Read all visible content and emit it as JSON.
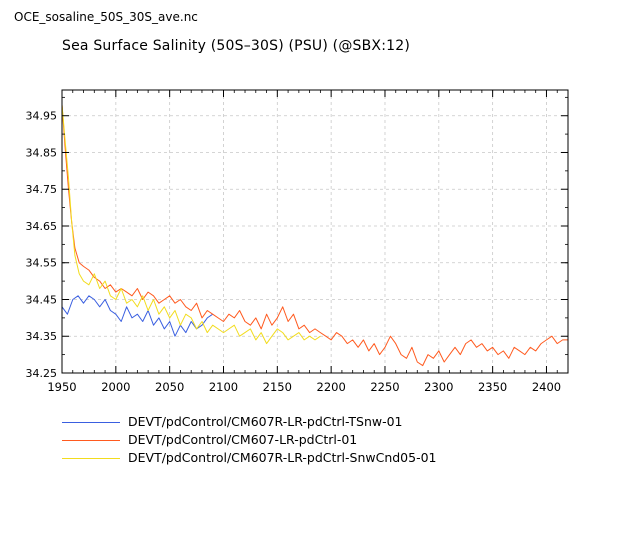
{
  "file_title": "OCE_sosaline_50S_30S_ave.nc",
  "chart_data": {
    "type": "line",
    "title": "Sea Surface Salinity (50S–30S) (PSU) (@SBX:12)",
    "xlabel": "",
    "ylabel": "",
    "xlim": [
      1950,
      2420
    ],
    "ylim": [
      34.25,
      35.02
    ],
    "x_ticks": [
      1950,
      2000,
      2050,
      2100,
      2150,
      2200,
      2250,
      2300,
      2350,
      2400
    ],
    "y_ticks": [
      34.25,
      34.35,
      34.45,
      34.55,
      34.65,
      34.75,
      34.85,
      34.95
    ],
    "x_tick_labels": [
      "1950",
      "2000",
      "2050",
      "2100",
      "2150",
      "2200",
      "2250",
      "2300",
      "2350",
      "2400"
    ],
    "y_tick_labels": [
      "34.25",
      "34.35",
      "34.45",
      "34.55",
      "34.65",
      "34.75",
      "34.85",
      "34.95"
    ],
    "grid": true,
    "legend_placement": "bottom",
    "series": [
      {
        "name": "DEVT/pdControl/CM607R-LR-pdCtrl-TSnw-01",
        "color": "#3a5fe0",
        "x": [
          1950,
          1955,
          1960,
          1965,
          1970,
          1975,
          1980,
          1985,
          1990,
          1995,
          2000,
          2005,
          2010,
          2015,
          2020,
          2025,
          2030,
          2035,
          2040,
          2045,
          2050,
          2055,
          2060,
          2065,
          2070,
          2075,
          2080,
          2085,
          2090
        ],
        "y": [
          34.43,
          34.41,
          34.45,
          34.46,
          34.44,
          34.46,
          34.45,
          34.43,
          34.45,
          34.42,
          34.41,
          34.39,
          34.43,
          34.4,
          34.41,
          34.39,
          34.42,
          34.38,
          34.4,
          34.37,
          34.39,
          34.35,
          34.38,
          34.36,
          34.39,
          34.37,
          34.38,
          34.4,
          34.41
        ]
      },
      {
        "name": "DEVT/pdControl/CM607-LR-pdCtrl-01",
        "color": "#ff5a1f",
        "x": [
          1950,
          1953,
          1956,
          1959,
          1962,
          1966,
          1970,
          1975,
          1980,
          1985,
          1990,
          1995,
          2000,
          2005,
          2010,
          2015,
          2020,
          2025,
          2030,
          2035,
          2040,
          2045,
          2050,
          2055,
          2060,
          2065,
          2070,
          2075,
          2080,
          2085,
          2090,
          2095,
          2100,
          2105,
          2110,
          2115,
          2120,
          2125,
          2130,
          2135,
          2140,
          2145,
          2150,
          2155,
          2160,
          2165,
          2170,
          2175,
          2180,
          2185,
          2190,
          2195,
          2200,
          2205,
          2210,
          2215,
          2220,
          2225,
          2230,
          2235,
          2240,
          2245,
          2250,
          2255,
          2260,
          2265,
          2270,
          2275,
          2280,
          2285,
          2290,
          2295,
          2300,
          2305,
          2310,
          2315,
          2320,
          2325,
          2330,
          2335,
          2340,
          2345,
          2350,
          2355,
          2360,
          2365,
          2370,
          2375,
          2380,
          2385,
          2390,
          2395,
          2400,
          2405,
          2410,
          2415,
          2420
        ],
        "y": [
          34.98,
          34.86,
          34.75,
          34.66,
          34.59,
          34.55,
          34.54,
          34.53,
          34.51,
          34.5,
          34.48,
          34.49,
          34.47,
          34.48,
          34.47,
          34.46,
          34.48,
          34.45,
          34.47,
          34.46,
          34.44,
          34.45,
          34.46,
          34.44,
          34.45,
          34.43,
          34.42,
          34.44,
          34.4,
          34.42,
          34.41,
          34.4,
          34.39,
          34.41,
          34.4,
          34.42,
          34.39,
          34.38,
          34.4,
          34.37,
          34.41,
          34.38,
          34.4,
          34.43,
          34.39,
          34.41,
          34.37,
          34.38,
          34.36,
          34.37,
          34.36,
          34.35,
          34.34,
          34.36,
          34.35,
          34.33,
          34.34,
          34.32,
          34.34,
          34.31,
          34.33,
          34.3,
          34.32,
          34.35,
          34.33,
          34.3,
          34.29,
          34.32,
          34.28,
          34.27,
          34.3,
          34.29,
          34.31,
          34.28,
          34.3,
          34.32,
          34.3,
          34.33,
          34.34,
          34.32,
          34.33,
          34.31,
          34.32,
          34.3,
          34.31,
          34.29,
          34.32,
          34.31,
          34.3,
          34.32,
          34.31,
          34.33,
          34.34,
          34.35,
          34.33,
          34.34,
          34.34
        ]
      },
      {
        "name": "DEVT/pdControl/CM607R-LR-pdCtrl-SnwCnd05-01",
        "color": "#f2dc1e",
        "x": [
          1950,
          1953,
          1956,
          1959,
          1962,
          1966,
          1970,
          1975,
          1980,
          1985,
          1990,
          1995,
          2000,
          2005,
          2010,
          2015,
          2020,
          2025,
          2030,
          2035,
          2040,
          2045,
          2050,
          2055,
          2060,
          2065,
          2070,
          2075,
          2080,
          2085,
          2090,
          2095,
          2100,
          2105,
          2110,
          2115,
          2120,
          2125,
          2130,
          2135,
          2140,
          2145,
          2150,
          2155,
          2160,
          2165,
          2170,
          2175,
          2180,
          2185,
          2190
        ],
        "y": [
          34.98,
          34.88,
          34.78,
          34.66,
          34.57,
          34.52,
          34.5,
          34.49,
          34.52,
          34.48,
          34.5,
          34.46,
          34.45,
          34.48,
          34.44,
          34.45,
          34.43,
          34.46,
          34.42,
          34.45,
          34.41,
          34.43,
          34.4,
          34.42,
          34.38,
          34.41,
          34.4,
          34.37,
          34.39,
          34.36,
          34.38,
          34.37,
          34.36,
          34.37,
          34.38,
          34.35,
          34.36,
          34.37,
          34.34,
          34.36,
          34.33,
          34.35,
          34.37,
          34.36,
          34.34,
          34.35,
          34.36,
          34.34,
          34.35,
          34.34,
          34.35
        ]
      }
    ]
  }
}
